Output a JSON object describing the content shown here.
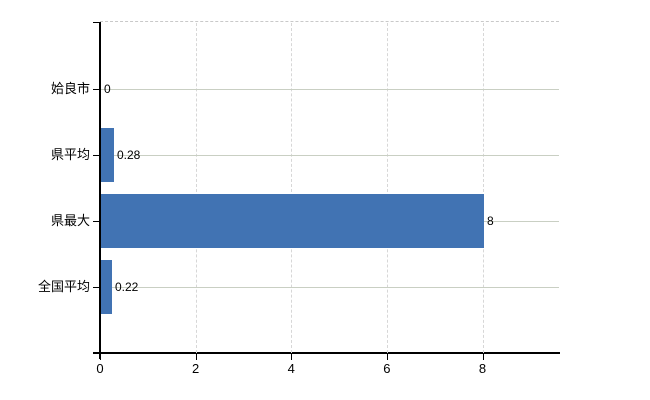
{
  "chart_data": {
    "type": "bar",
    "orientation": "horizontal",
    "categories": [
      "姶良市",
      "県平均",
      "県最大",
      "全国平均"
    ],
    "values": [
      0,
      0.28,
      8,
      0.22
    ],
    "data_labels": [
      "0",
      "0.28",
      "8",
      "0.22"
    ],
    "x_ticks": [
      0,
      2,
      4,
      6,
      8
    ],
    "x_tick_labels": [
      "0",
      "2",
      "4",
      "6",
      "8"
    ],
    "xlim": [
      0,
      9.6
    ],
    "grid": true,
    "legend": "none",
    "bar_color": "#4173b3",
    "hgrid_color": "#c9cfc3",
    "vgrid_color": "#d7d7d7",
    "axis_color": "#000000",
    "background_color": "#ffffff"
  }
}
